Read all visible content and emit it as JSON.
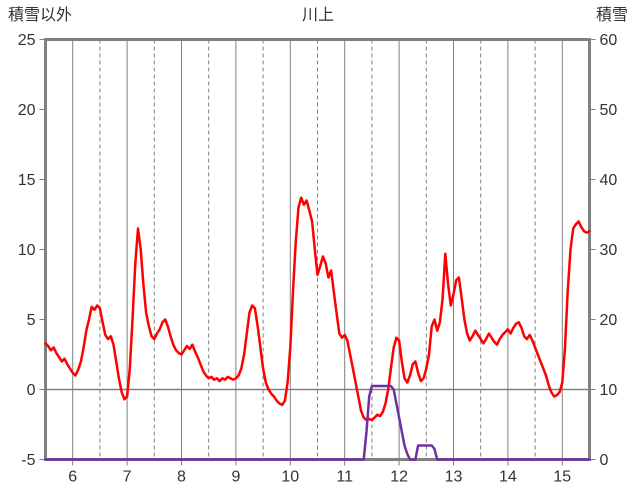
{
  "page": {
    "background": "#FFFFFF"
  },
  "chart_data": {
    "type": "line",
    "title": "川上",
    "legend": "none",
    "grid": {
      "color": "#808080",
      "border_color": "#808080",
      "zero_line_left": 0
    },
    "left_axis": {
      "title": "積雪以外",
      "min": -5,
      "max": 25,
      "ticks": [
        25,
        20,
        15,
        10,
        5,
        0,
        -5
      ]
    },
    "right_axis": {
      "title": "積雪",
      "min": 0,
      "max": 60,
      "ticks": [
        60,
        50,
        40,
        30,
        20,
        10,
        0
      ]
    },
    "x_axis": {
      "min": 5.5,
      "max": 15.5,
      "major_ticks": [
        6,
        7,
        8,
        9,
        10,
        11,
        12,
        13,
        14,
        15
      ],
      "minor_gridlines": [
        6.5,
        7.5,
        8.5,
        9.5,
        10.5,
        11.5,
        12.5,
        13.5,
        14.5
      ]
    },
    "series": [
      {
        "name": "red-series-line",
        "axis": "left",
        "color": "#FF0000",
        "width": 2.5,
        "points": [
          [
            5.5,
            3.3
          ],
          [
            5.55,
            3.1
          ],
          [
            5.6,
            2.8
          ],
          [
            5.65,
            3.0
          ],
          [
            5.7,
            2.6
          ],
          [
            5.75,
            2.3
          ],
          [
            5.8,
            2.0
          ],
          [
            5.85,
            2.2
          ],
          [
            5.9,
            1.8
          ],
          [
            5.95,
            1.5
          ],
          [
            6.0,
            1.2
          ],
          [
            6.05,
            1.0
          ],
          [
            6.1,
            1.4
          ],
          [
            6.15,
            2.0
          ],
          [
            6.2,
            3.0
          ],
          [
            6.25,
            4.2
          ],
          [
            6.3,
            5.0
          ],
          [
            6.35,
            5.9
          ],
          [
            6.4,
            5.7
          ],
          [
            6.45,
            6.0
          ],
          [
            6.5,
            5.8
          ],
          [
            6.55,
            4.8
          ],
          [
            6.6,
            3.9
          ],
          [
            6.65,
            3.6
          ],
          [
            6.7,
            3.8
          ],
          [
            6.75,
            3.2
          ],
          [
            6.8,
            2.0
          ],
          [
            6.85,
            0.8
          ],
          [
            6.9,
            -0.2
          ],
          [
            6.95,
            -0.7
          ],
          [
            7.0,
            -0.5
          ],
          [
            7.05,
            1.5
          ],
          [
            7.1,
            5.0
          ],
          [
            7.15,
            9.0
          ],
          [
            7.2,
            11.5
          ],
          [
            7.25,
            10.0
          ],
          [
            7.3,
            7.5
          ],
          [
            7.35,
            5.5
          ],
          [
            7.4,
            4.5
          ],
          [
            7.45,
            3.8
          ],
          [
            7.5,
            3.6
          ],
          [
            7.55,
            4.0
          ],
          [
            7.6,
            4.3
          ],
          [
            7.65,
            4.8
          ],
          [
            7.7,
            5.0
          ],
          [
            7.75,
            4.5
          ],
          [
            7.8,
            3.8
          ],
          [
            7.85,
            3.2
          ],
          [
            7.9,
            2.8
          ],
          [
            7.95,
            2.6
          ],
          [
            8.0,
            2.5
          ],
          [
            8.05,
            2.8
          ],
          [
            8.1,
            3.1
          ],
          [
            8.15,
            2.9
          ],
          [
            8.2,
            3.2
          ],
          [
            8.25,
            2.7
          ],
          [
            8.3,
            2.3
          ],
          [
            8.35,
            1.8
          ],
          [
            8.4,
            1.3
          ],
          [
            8.45,
            1.0
          ],
          [
            8.5,
            0.8
          ],
          [
            8.55,
            0.9
          ],
          [
            8.6,
            0.7
          ],
          [
            8.65,
            0.8
          ],
          [
            8.7,
            0.6
          ],
          [
            8.75,
            0.8
          ],
          [
            8.8,
            0.7
          ],
          [
            8.85,
            0.9
          ],
          [
            8.9,
            0.8
          ],
          [
            8.95,
            0.7
          ],
          [
            9.0,
            0.8
          ],
          [
            9.05,
            1.0
          ],
          [
            9.1,
            1.5
          ],
          [
            9.15,
            2.5
          ],
          [
            9.2,
            4.0
          ],
          [
            9.25,
            5.5
          ],
          [
            9.3,
            6.0
          ],
          [
            9.35,
            5.8
          ],
          [
            9.4,
            4.5
          ],
          [
            9.45,
            3.0
          ],
          [
            9.5,
            1.5
          ],
          [
            9.55,
            0.5
          ],
          [
            9.6,
            0.0
          ],
          [
            9.65,
            -0.3
          ],
          [
            9.7,
            -0.5
          ],
          [
            9.75,
            -0.8
          ],
          [
            9.8,
            -1.0
          ],
          [
            9.85,
            -1.1
          ],
          [
            9.9,
            -0.8
          ],
          [
            9.95,
            0.5
          ],
          [
            10.0,
            3.0
          ],
          [
            10.05,
            7.0
          ],
          [
            10.1,
            10.5
          ],
          [
            10.15,
            13.0
          ],
          [
            10.2,
            13.7
          ],
          [
            10.25,
            13.2
          ],
          [
            10.3,
            13.5
          ],
          [
            10.35,
            12.8
          ],
          [
            10.4,
            12.0
          ],
          [
            10.45,
            10.0
          ],
          [
            10.5,
            8.2
          ],
          [
            10.55,
            8.8
          ],
          [
            10.6,
            9.5
          ],
          [
            10.65,
            9.0
          ],
          [
            10.7,
            8.0
          ],
          [
            10.75,
            8.5
          ],
          [
            10.8,
            7.0
          ],
          [
            10.85,
            5.5
          ],
          [
            10.9,
            4.0
          ],
          [
            10.95,
            3.7
          ],
          [
            11.0,
            3.9
          ],
          [
            11.05,
            3.5
          ],
          [
            11.1,
            2.5
          ],
          [
            11.15,
            1.5
          ],
          [
            11.2,
            0.5
          ],
          [
            11.25,
            -0.5
          ],
          [
            11.3,
            -1.5
          ],
          [
            11.35,
            -2.0
          ],
          [
            11.4,
            -2.2
          ],
          [
            11.45,
            -2.1
          ],
          [
            11.5,
            -2.2
          ],
          [
            11.55,
            -2.0
          ],
          [
            11.6,
            -1.8
          ],
          [
            11.65,
            -1.9
          ],
          [
            11.7,
            -1.6
          ],
          [
            11.75,
            -1.0
          ],
          [
            11.8,
            0.0
          ],
          [
            11.85,
            1.5
          ],
          [
            11.9,
            3.0
          ],
          [
            11.95,
            3.7
          ],
          [
            12.0,
            3.5
          ],
          [
            12.05,
            2.0
          ],
          [
            12.1,
            0.8
          ],
          [
            12.15,
            0.5
          ],
          [
            12.2,
            1.0
          ],
          [
            12.25,
            1.8
          ],
          [
            12.3,
            2.0
          ],
          [
            12.35,
            1.2
          ],
          [
            12.4,
            0.6
          ],
          [
            12.45,
            0.8
          ],
          [
            12.5,
            1.5
          ],
          [
            12.55,
            2.5
          ],
          [
            12.6,
            4.5
          ],
          [
            12.65,
            5.0
          ],
          [
            12.7,
            4.2
          ],
          [
            12.75,
            4.8
          ],
          [
            12.8,
            6.5
          ],
          [
            12.85,
            9.7
          ],
          [
            12.9,
            7.5
          ],
          [
            12.95,
            6.0
          ],
          [
            13.0,
            6.8
          ],
          [
            13.05,
            7.8
          ],
          [
            13.1,
            8.0
          ],
          [
            13.15,
            6.5
          ],
          [
            13.2,
            5.0
          ],
          [
            13.25,
            4.0
          ],
          [
            13.3,
            3.5
          ],
          [
            13.35,
            3.8
          ],
          [
            13.4,
            4.2
          ],
          [
            13.45,
            3.9
          ],
          [
            13.5,
            3.6
          ],
          [
            13.55,
            3.3
          ],
          [
            13.6,
            3.6
          ],
          [
            13.65,
            4.0
          ],
          [
            13.7,
            3.7
          ],
          [
            13.75,
            3.4
          ],
          [
            13.8,
            3.2
          ],
          [
            13.85,
            3.6
          ],
          [
            13.9,
            3.9
          ],
          [
            13.95,
            4.1
          ],
          [
            14.0,
            4.3
          ],
          [
            14.05,
            4.0
          ],
          [
            14.1,
            4.4
          ],
          [
            14.15,
            4.7
          ],
          [
            14.2,
            4.8
          ],
          [
            14.25,
            4.4
          ],
          [
            14.3,
            3.8
          ],
          [
            14.35,
            3.6
          ],
          [
            14.4,
            3.9
          ],
          [
            14.45,
            3.5
          ],
          [
            14.5,
            3.0
          ],
          [
            14.55,
            2.5
          ],
          [
            14.6,
            2.0
          ],
          [
            14.65,
            1.5
          ],
          [
            14.7,
            1.0
          ],
          [
            14.75,
            0.3
          ],
          [
            14.8,
            -0.2
          ],
          [
            14.85,
            -0.5
          ],
          [
            14.9,
            -0.4
          ],
          [
            14.95,
            -0.2
          ],
          [
            15.0,
            0.5
          ],
          [
            15.05,
            3.0
          ],
          [
            15.1,
            7.0
          ],
          [
            15.15,
            10.0
          ],
          [
            15.2,
            11.5
          ],
          [
            15.25,
            11.8
          ],
          [
            15.3,
            12.0
          ],
          [
            15.35,
            11.6
          ],
          [
            15.4,
            11.3
          ],
          [
            15.45,
            11.2
          ],
          [
            15.5,
            11.3
          ]
        ]
      },
      {
        "name": "purple-series-line",
        "axis": "right",
        "color": "#7030A0",
        "width": 2.5,
        "points": [
          [
            5.5,
            0
          ],
          [
            11.35,
            0
          ],
          [
            11.4,
            4
          ],
          [
            11.45,
            9
          ],
          [
            11.5,
            10.5
          ],
          [
            11.85,
            10.5
          ],
          [
            11.9,
            10
          ],
          [
            11.95,
            8
          ],
          [
            12.0,
            6
          ],
          [
            12.05,
            4
          ],
          [
            12.1,
            2
          ],
          [
            12.15,
            0.8
          ],
          [
            12.2,
            0
          ],
          [
            12.3,
            0
          ],
          [
            12.35,
            2
          ],
          [
            12.6,
            2
          ],
          [
            12.65,
            1.5
          ],
          [
            12.7,
            0
          ],
          [
            15.5,
            0
          ]
        ]
      }
    ]
  }
}
